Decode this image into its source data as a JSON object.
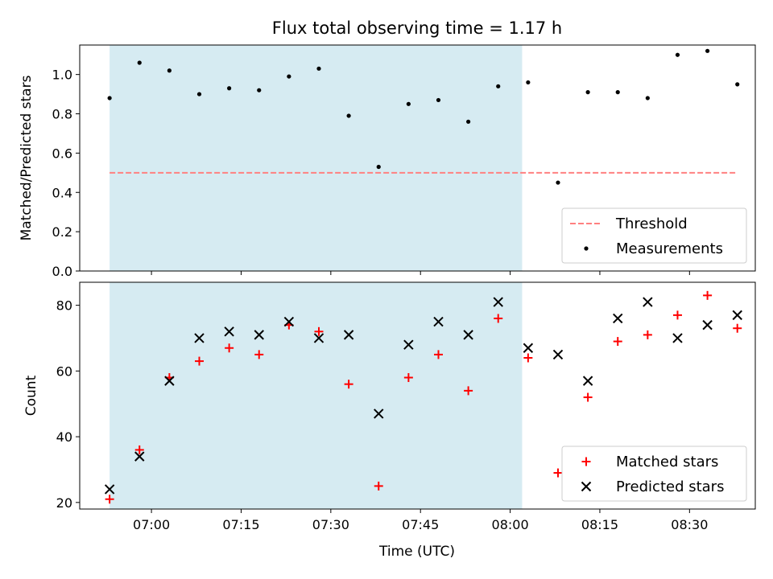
{
  "chart_data": {
    "title": "Flux total observing time = 1.17 h",
    "shaded_interval": {
      "start": "06:53",
      "end": "08:02",
      "color": "#add8e6"
    },
    "x_axis": {
      "label": "Time (UTC)",
      "range": [
        "06:48",
        "08:41"
      ],
      "ticks": [
        "07:00",
        "07:15",
        "07:30",
        "07:45",
        "08:00",
        "08:15",
        "08:30"
      ]
    },
    "panels": [
      {
        "type": "scatter",
        "ylabel": "Matched/Predicted stars",
        "ylim": [
          0,
          1.15
        ],
        "yticks": [
          "0.0",
          "0.2",
          "0.4",
          "0.6",
          "0.8",
          "1.0"
        ],
        "legend_position": "lower-right",
        "series": [
          {
            "name": "Threshold",
            "kind": "line",
            "style": "dashed",
            "color": "#ff8080",
            "x": [
              "06:53",
              "08:38"
            ],
            "values": [
              0.5,
              0.5
            ]
          },
          {
            "name": "Measurements",
            "kind": "points",
            "color": "#000000",
            "x": [
              "06:53",
              "06:58",
              "07:03",
              "07:08",
              "07:13",
              "07:18",
              "07:23",
              "07:28",
              "07:33",
              "07:38",
              "07:43",
              "07:48",
              "07:53",
              "07:58",
              "08:03",
              "08:08",
              "08:13",
              "08:18",
              "08:23",
              "08:28",
              "08:33",
              "08:38"
            ],
            "values": [
              0.88,
              1.06,
              1.02,
              0.9,
              0.93,
              0.92,
              0.99,
              1.03,
              0.79,
              0.53,
              0.85,
              0.87,
              0.76,
              0.94,
              0.96,
              0.45,
              0.91,
              0.91,
              0.88,
              1.1,
              1.12,
              0.95
            ]
          }
        ]
      },
      {
        "type": "scatter",
        "ylabel": "Count",
        "ylim": [
          18,
          87
        ],
        "yticks": [
          "20",
          "40",
          "60",
          "80"
        ],
        "legend_position": "lower-right",
        "series": [
          {
            "name": "Matched stars",
            "marker": "+",
            "color": "#ff0000",
            "x": [
              "06:53",
              "06:58",
              "07:03",
              "07:08",
              "07:13",
              "07:18",
              "07:23",
              "07:28",
              "07:33",
              "07:38",
              "07:43",
              "07:48",
              "07:53",
              "07:58",
              "08:03",
              "08:08",
              "08:13",
              "08:18",
              "08:23",
              "08:28",
              "08:33",
              "08:38"
            ],
            "values": [
              21,
              36,
              58,
              63,
              67,
              65,
              74,
              72,
              56,
              25,
              58,
              65,
              54,
              76,
              64,
              29,
              52,
              69,
              71,
              77,
              83,
              73
            ]
          },
          {
            "name": "Predicted stars",
            "marker": "x",
            "color": "#000000",
            "x": [
              "06:53",
              "06:58",
              "07:03",
              "07:08",
              "07:13",
              "07:18",
              "07:23",
              "07:28",
              "07:33",
              "07:38",
              "07:43",
              "07:48",
              "07:53",
              "07:58",
              "08:03",
              "08:08",
              "08:13",
              "08:18",
              "08:23",
              "08:28",
              "08:33",
              "08:38"
            ],
            "values": [
              24,
              34,
              57,
              70,
              72,
              71,
              75,
              70,
              71,
              47,
              68,
              75,
              71,
              81,
              67,
              65,
              57,
              76,
              81,
              70,
              74,
              77
            ]
          }
        ]
      }
    ]
  }
}
